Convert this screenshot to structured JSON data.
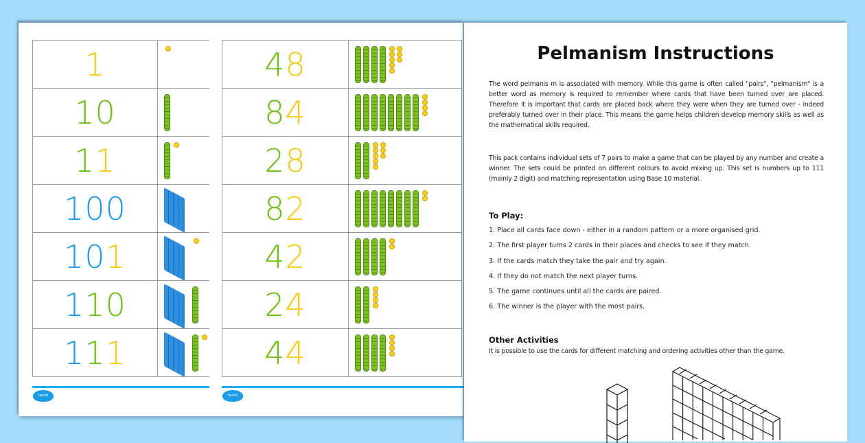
{
  "cards_sheet_1": {
    "rows": [
      {
        "number": "1",
        "digits": [
          {
            "d": "1",
            "place": "o"
          }
        ],
        "hundreds": 0,
        "tens": 0,
        "ones": 1
      },
      {
        "number": "10",
        "digits": [
          {
            "d": "1",
            "place": "t"
          },
          {
            "d": "0",
            "place": "t"
          }
        ],
        "hundreds": 0,
        "tens": 1,
        "ones": 0
      },
      {
        "number": "11",
        "digits": [
          {
            "d": "1",
            "place": "t"
          },
          {
            "d": "1",
            "place": "o"
          }
        ],
        "hundreds": 0,
        "tens": 1,
        "ones": 1
      },
      {
        "number": "100",
        "digits": [
          {
            "d": "1",
            "place": "h"
          },
          {
            "d": "0",
            "place": "h"
          },
          {
            "d": "0",
            "place": "h"
          }
        ],
        "hundreds": 1,
        "tens": 0,
        "ones": 0
      },
      {
        "number": "101",
        "digits": [
          {
            "d": "1",
            "place": "h"
          },
          {
            "d": "0",
            "place": "h"
          },
          {
            "d": "1",
            "place": "o"
          }
        ],
        "hundreds": 1,
        "tens": 0,
        "ones": 1
      },
      {
        "number": "110",
        "digits": [
          {
            "d": "1",
            "place": "h"
          },
          {
            "d": "1",
            "place": "t"
          },
          {
            "d": "0",
            "place": "t"
          }
        ],
        "hundreds": 1,
        "tens": 1,
        "ones": 0
      },
      {
        "number": "111",
        "digits": [
          {
            "d": "1",
            "place": "h"
          },
          {
            "d": "1",
            "place": "t"
          },
          {
            "d": "1",
            "place": "o"
          }
        ],
        "hundreds": 1,
        "tens": 1,
        "ones": 1
      }
    ],
    "logo": "twinkl"
  },
  "cards_sheet_2": {
    "rows": [
      {
        "number": "48",
        "digits": [
          {
            "d": "4",
            "place": "t"
          },
          {
            "d": "8",
            "place": "o"
          }
        ],
        "hundreds": 0,
        "tens": 4,
        "ones": 8
      },
      {
        "number": "84",
        "digits": [
          {
            "d": "8",
            "place": "t"
          },
          {
            "d": "4",
            "place": "o"
          }
        ],
        "hundreds": 0,
        "tens": 8,
        "ones": 4
      },
      {
        "number": "28",
        "digits": [
          {
            "d": "2",
            "place": "t"
          },
          {
            "d": "8",
            "place": "o"
          }
        ],
        "hundreds": 0,
        "tens": 2,
        "ones": 8
      },
      {
        "number": "82",
        "digits": [
          {
            "d": "8",
            "place": "t"
          },
          {
            "d": "2",
            "place": "o"
          }
        ],
        "hundreds": 0,
        "tens": 8,
        "ones": 2
      },
      {
        "number": "42",
        "digits": [
          {
            "d": "4",
            "place": "t"
          },
          {
            "d": "2",
            "place": "o"
          }
        ],
        "hundreds": 0,
        "tens": 4,
        "ones": 2
      },
      {
        "number": "24",
        "digits": [
          {
            "d": "2",
            "place": "t"
          },
          {
            "d": "4",
            "place": "o"
          }
        ],
        "hundreds": 0,
        "tens": 2,
        "ones": 4
      },
      {
        "number": "44",
        "digits": [
          {
            "d": "4",
            "place": "t"
          },
          {
            "d": "4",
            "place": "o"
          }
        ],
        "hundreds": 0,
        "tens": 4,
        "ones": 4
      }
    ],
    "logo": "twinkl"
  },
  "colors": {
    "hundreds": "#1a9cf0",
    "tens": "#6ac10e",
    "ones": "#fcc90c",
    "background": "#a6dcfb",
    "footer_line": "#1ab0ee"
  },
  "instructions": {
    "title": "Pelmanism Instructions",
    "paragraph_1": "The word pelmanis m is associated with memory. While this game is often called \"pairs\", \"pelmanism\" is a better word as  memory is required to remember where cards that have been turned over are placed. Therefore it is important that cards are placed back where they were when they are turned over - indeed preferably turned over in their place. This means the game helps children develop memory skills as well as the mathematical skills required.",
    "paragraph_2": "This pack contains individual sets of 7 pairs to make a game that can be played by any number and create a winner. The sets could be printed on different colours to avoid mixing up. This set is numbers up to 111 (mainly 2 digit) and matching representation using Base 10 material.",
    "to_play_heading": "To Play:",
    "steps": [
      "1. Place all cards face down - either in a random pattern or a more organised grid.",
      "2. The first player turns 2 cards in their places and checks to see if they  match.",
      "3. If the cards match they  take the pair and try again.",
      "4. If they  do not match the next player turns.",
      "5. The game continues until all the cards are paired.",
      "6. The winner is the player with the most pairs."
    ],
    "other_heading": "Other Activities",
    "other_text": "It is possible to use the cards for different matching and ordering activities other than the game."
  }
}
